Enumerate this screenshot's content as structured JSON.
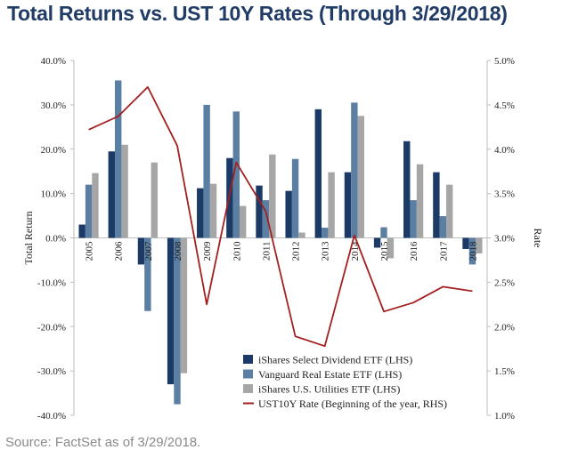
{
  "title": "Total Returns vs. UST 10Y Rates (Through 3/29/2018)",
  "source": "Source: FactSet as of 3/29/2018.",
  "colors": {
    "series1": "#1b3a66",
    "series2": "#5b7fa3",
    "series3": "#a6a6a6",
    "rate_line": "#a32020",
    "title": "#1f3b66"
  },
  "chart_data": {
    "type": "bar",
    "categories": [
      "2005",
      "2006",
      "2007",
      "2008",
      "2009",
      "2010",
      "2011",
      "2012",
      "2013",
      "2014",
      "2015",
      "2016",
      "2017",
      "2018"
    ],
    "series": [
      {
        "name": "iShares Select Dividend ETF (LHS)",
        "values": [
          3.0,
          19.5,
          -6.0,
          -33.0,
          11.2,
          18.0,
          11.8,
          10.6,
          29.0,
          14.8,
          -2.2,
          21.8,
          14.8,
          -2.5
        ]
      },
      {
        "name": "Vanguard Real Estate ETF (LHS)",
        "values": [
          12.0,
          35.5,
          -16.5,
          -37.5,
          30.0,
          28.5,
          8.5,
          17.8,
          2.3,
          30.5,
          2.4,
          8.5,
          4.9,
          -6.0
        ]
      },
      {
        "name": "iShares U.S. Utilities ETF (LHS)",
        "values": [
          14.6,
          21.0,
          17.0,
          -30.5,
          12.2,
          7.2,
          18.8,
          1.2,
          14.8,
          27.5,
          -4.6,
          16.6,
          12.0,
          -3.5
        ]
      }
    ],
    "line_series": {
      "name": "UST10Y Rate (Beginning of the year, RHS)",
      "values": [
        4.22,
        4.37,
        4.7,
        4.04,
        2.25,
        3.85,
        3.3,
        1.89,
        1.78,
        3.03,
        2.17,
        2.27,
        2.45,
        2.4
      ]
    },
    "y_left": {
      "label": "Total Return",
      "min": -40,
      "max": 40,
      "ticks": [
        40,
        30,
        20,
        10,
        0,
        -10,
        -20,
        -30,
        -40
      ],
      "tick_labels": [
        "40.0%",
        "30.0%",
        "20.0%",
        "10.0%",
        "0.0%",
        "-10.0%",
        "-20.0%",
        "-30.0%",
        "-40.0%"
      ]
    },
    "y_right": {
      "label": "Rate",
      "min": 1.0,
      "max": 5.0,
      "ticks": [
        5.0,
        4.5,
        4.0,
        3.5,
        3.0,
        2.5,
        2.0,
        1.5,
        1.0
      ],
      "tick_labels": [
        "5.0%",
        "4.5%",
        "4.0%",
        "3.5%",
        "3.0%",
        "2.5%",
        "2.0%",
        "1.5%",
        "1.0%"
      ]
    },
    "grid": false,
    "legend_position": "bottom-right"
  }
}
